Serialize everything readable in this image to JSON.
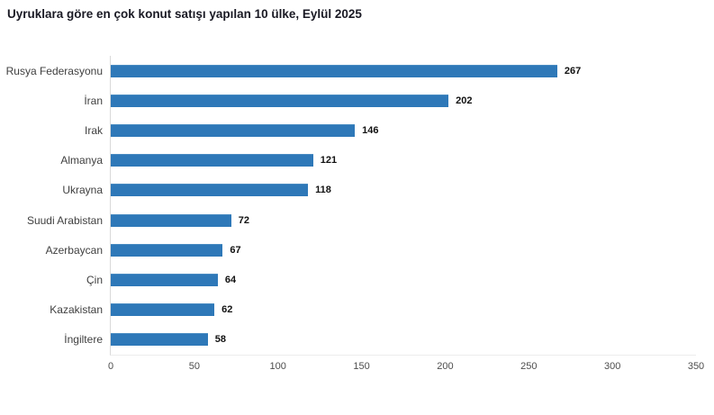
{
  "title": "Uyruklara göre en çok konut satışı yapılan 10 ülke, Eylül 2025",
  "colors": {
    "bar": "#2e78b8",
    "title_text": "#1a1a24",
    "category_label": "#3f3f3f",
    "value_label": "#111111",
    "tick_label": "#4d4d4d",
    "y_axis_line": "#d9d9d9",
    "x_axis_line": "#ededed",
    "background": "#ffffff"
  },
  "chart_data": {
    "type": "bar",
    "orientation": "horizontal",
    "title": "Uyruklara göre en çok konut satışı yapılan 10 ülke, Eylül 2025",
    "categories": [
      "Rusya Federasyonu",
      "İran",
      "Irak",
      "Almanya",
      "Ukrayna",
      "Suudi Arabistan",
      "Azerbaycan",
      "Çin",
      "Kazakistan",
      "İngiltere"
    ],
    "values": [
      267,
      202,
      146,
      121,
      118,
      72,
      67,
      64,
      62,
      58
    ],
    "xlabel": "",
    "ylabel": "",
    "xlim": [
      0,
      350
    ],
    "x_ticks": [
      0,
      50,
      100,
      150,
      200,
      250,
      300,
      350
    ],
    "grid": false,
    "legend": false,
    "value_labels_shown": true
  }
}
